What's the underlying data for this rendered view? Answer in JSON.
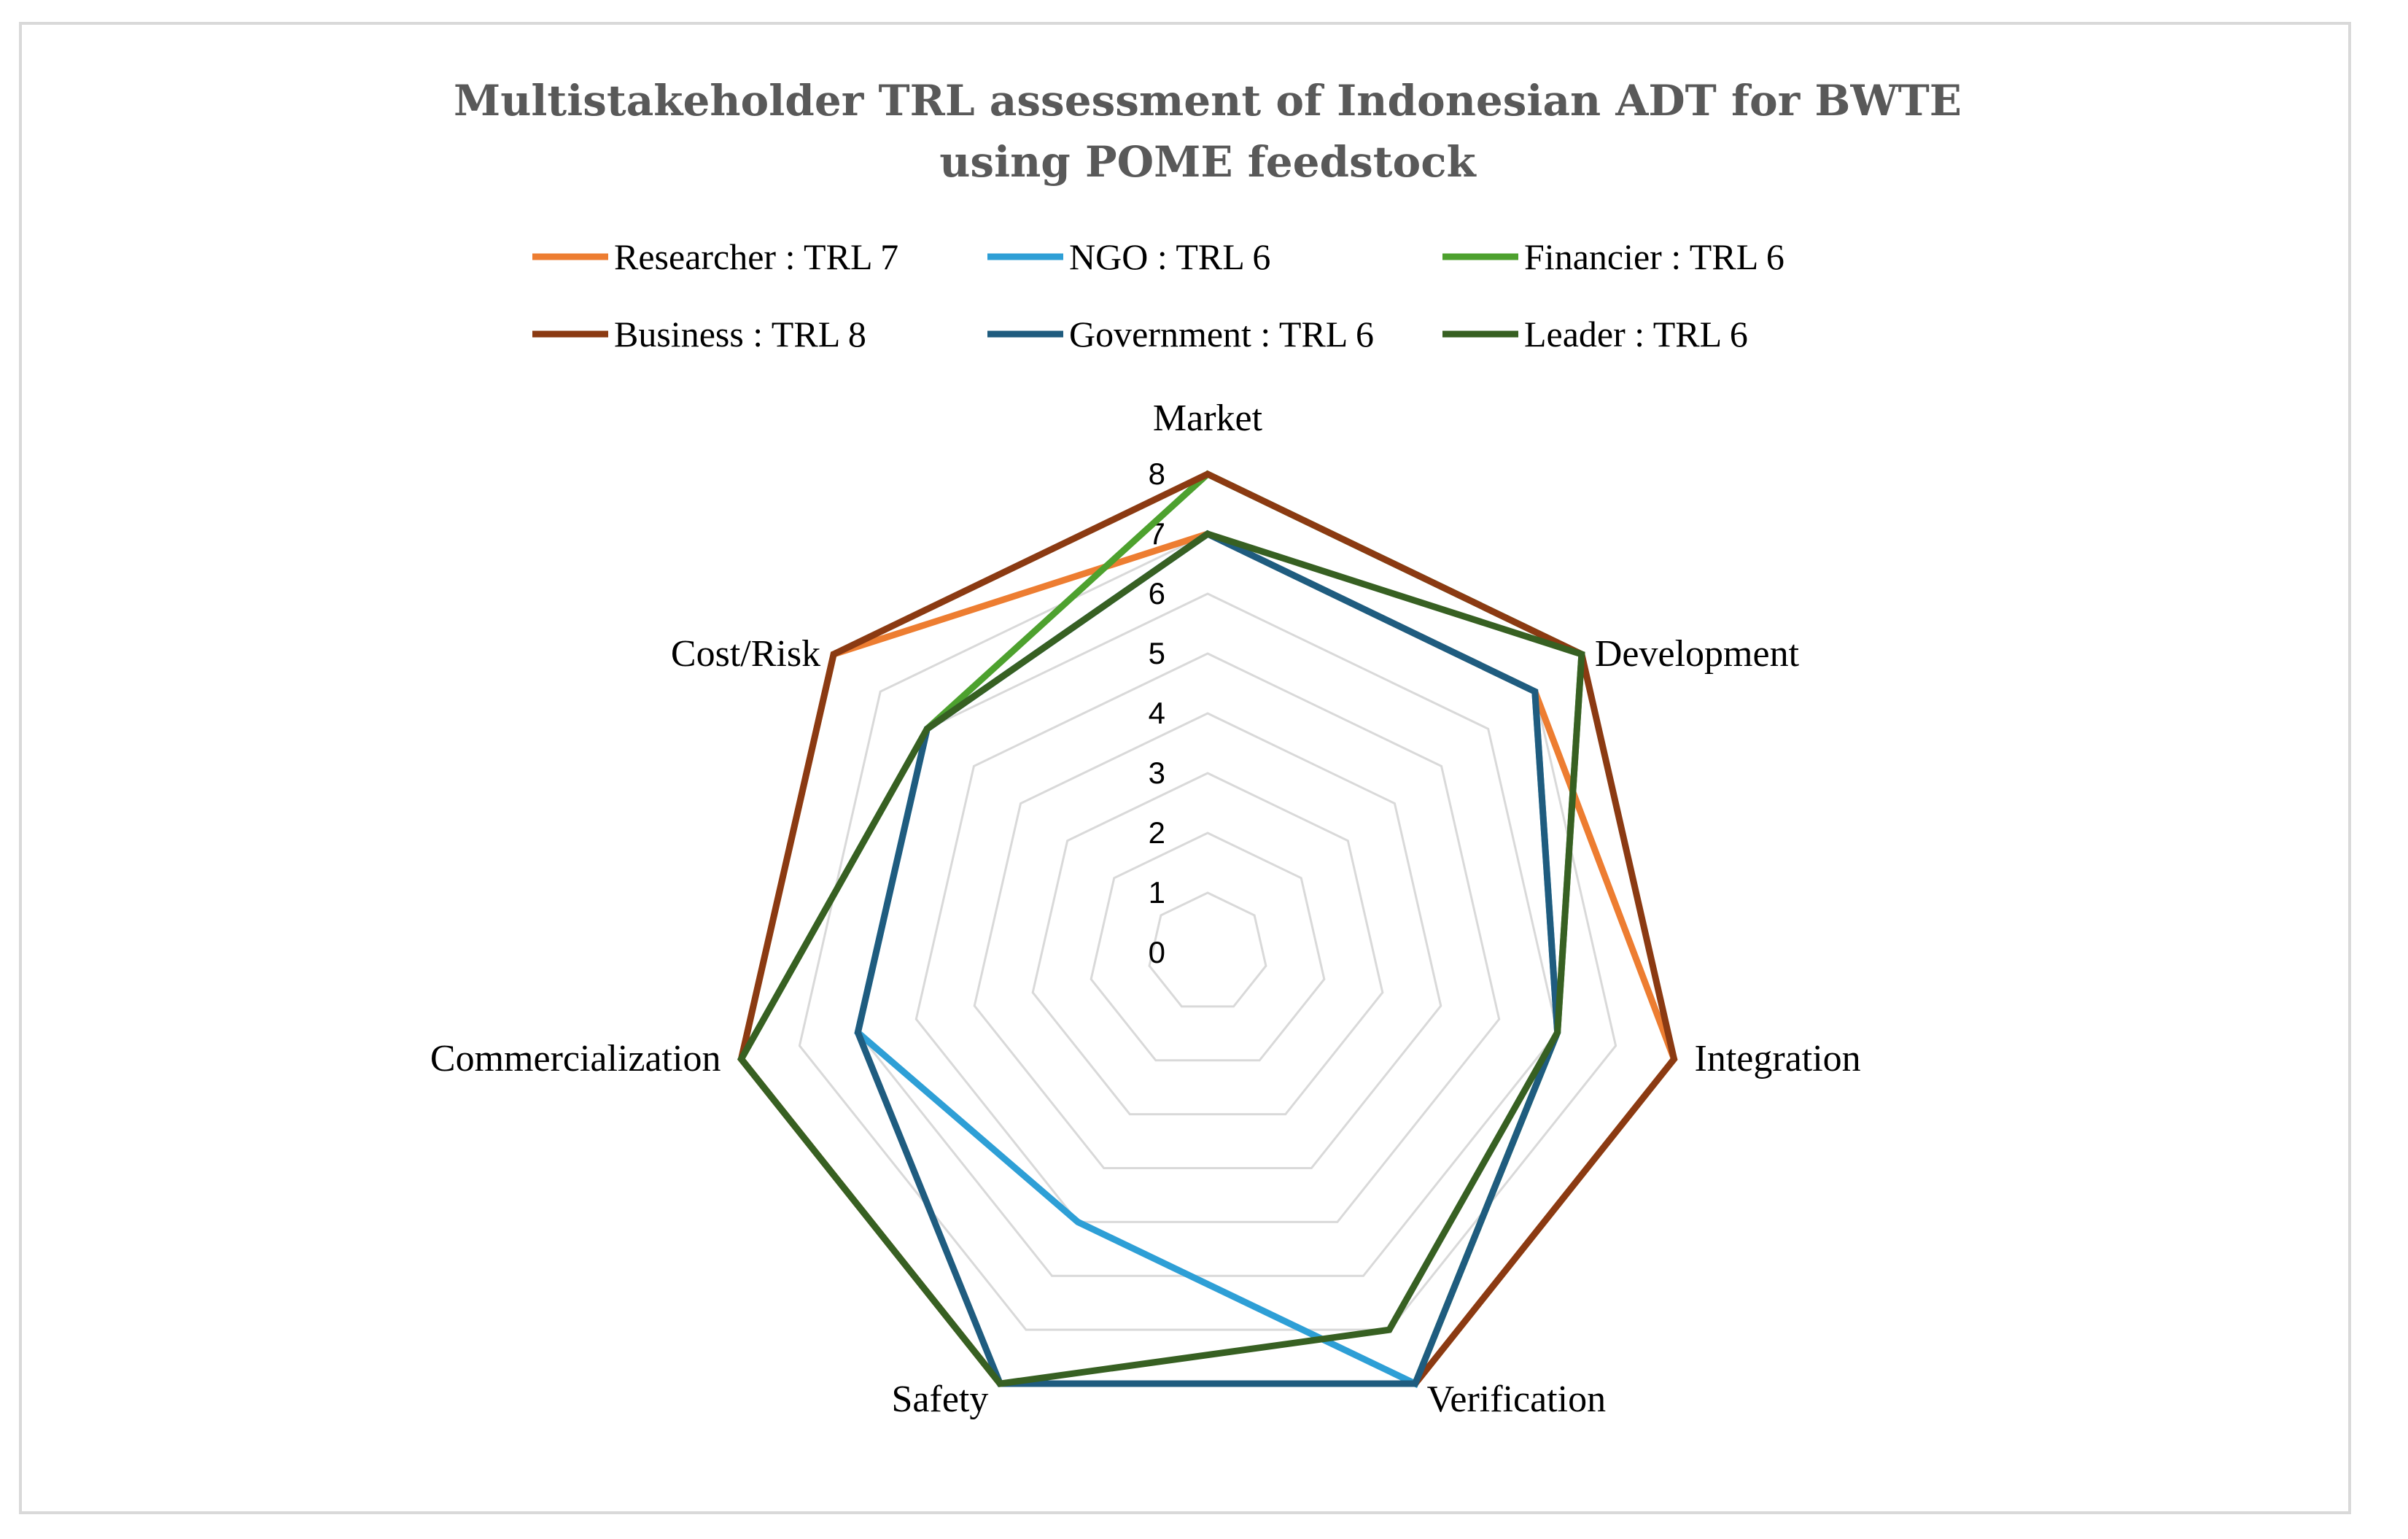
{
  "chart_data": {
    "type": "radar",
    "title": "Multistakeholder TRL assessment of Indonesian ADT for BWTE using POME feedstock",
    "title_lines": [
      "Multistakeholder TRL assessment of Indonesian ADT for BWTE",
      "using POME feedstock"
    ],
    "axes": [
      "Market",
      "Development",
      "Integration",
      "Verification",
      "Safety",
      "Commercialization",
      "Cost/Risk"
    ],
    "range": [
      0,
      8
    ],
    "ticks": [
      "0",
      "1",
      "2",
      "3",
      "4",
      "5",
      "6",
      "7",
      "8"
    ],
    "grid": true,
    "legend_position": "top",
    "series": [
      {
        "name": "Researcher : TRL 7",
        "color": "#ED7D31",
        "values": [
          7,
          7,
          8,
          8,
          8,
          8,
          8
        ]
      },
      {
        "name": "NGO : TRL 6",
        "color": "#2E9FD6",
        "values": [
          7,
          7,
          6,
          8,
          5,
          6,
          6
        ]
      },
      {
        "name": "Financier : TRL 6",
        "color": "#4DA12E",
        "values": [
          8,
          8,
          6,
          8,
          8,
          8,
          6
        ]
      },
      {
        "name": "Business : TRL 8",
        "color": "#8B3A12",
        "values": [
          8,
          8,
          8,
          8,
          8,
          8,
          8
        ]
      },
      {
        "name": "Government : TRL 6",
        "color": "#1F5C7F",
        "values": [
          7,
          7,
          6,
          8,
          8,
          6,
          6
        ]
      },
      {
        "name": "Leader : TRL 6",
        "color": "#376022",
        "values": [
          7,
          8,
          6,
          7,
          8,
          8,
          6
        ]
      }
    ]
  }
}
